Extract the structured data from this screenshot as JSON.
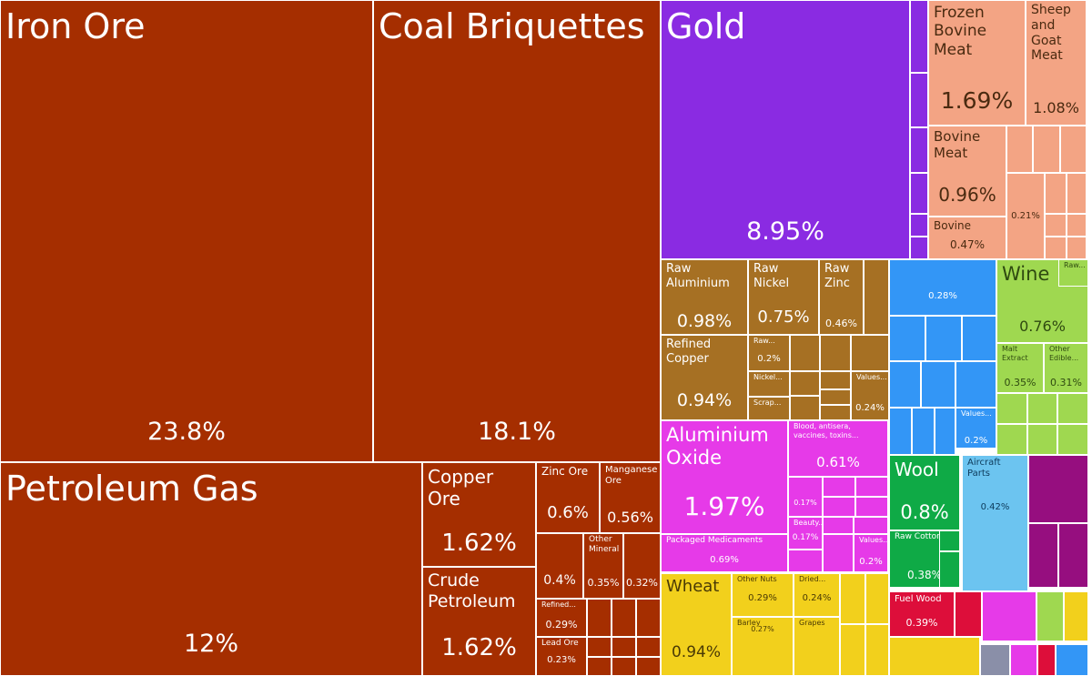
{
  "chart_data": {
    "type": "treemap",
    "unit": "%",
    "colors": {
      "minerals": "#a52e00",
      "gold": "#8a2be2",
      "meat": "#f3a484",
      "metals": "#a67023",
      "chemicals": "#e63ae8",
      "machinery": "#3396f6",
      "plant": "#9fd850",
      "food": "#f2d01c",
      "textile": "#0faa46",
      "transport": "#6cc4f0",
      "misc": "#960e7f",
      "wood": "#dd0e3a",
      "grid": "#ffffff"
    },
    "items": [
      {
        "name": "Iron Ore",
        "value": 23.8,
        "color": "minerals"
      },
      {
        "name": "Coal Briquettes",
        "value": 18.1,
        "color": "minerals"
      },
      {
        "name": "Petroleum Gas",
        "value": 12,
        "color": "minerals"
      },
      {
        "name": "Copper Ore",
        "value": 1.62,
        "color": "minerals"
      },
      {
        "name": "Crude Petroleum",
        "value": 1.62,
        "color": "minerals"
      },
      {
        "name": "Zinc Ore",
        "value": 0.6,
        "color": "minerals"
      },
      {
        "name": "Manganese Ore",
        "value": 0.56,
        "color": "minerals"
      },
      {
        "name": "",
        "value": 0.4,
        "color": "minerals"
      },
      {
        "name": "Other Mineral",
        "value": 0.35,
        "color": "minerals"
      },
      {
        "name": "",
        "value": 0.32,
        "color": "minerals"
      },
      {
        "name": "Refined...",
        "value": 0.29,
        "color": "minerals"
      },
      {
        "name": "Lead Ore",
        "value": 0.23,
        "color": "minerals"
      },
      {
        "name": "Gold",
        "value": 8.95,
        "color": "gold"
      },
      {
        "name": "Frozen Bovine Meat",
        "value": 1.69,
        "color": "meat"
      },
      {
        "name": "Sheep and Goat Meat",
        "value": 1.08,
        "color": "meat"
      },
      {
        "name": "Bovine Meat",
        "value": 0.96,
        "color": "meat"
      },
      {
        "name": "Bovine",
        "value": 0.47,
        "color": "meat"
      },
      {
        "name": "",
        "value": 0.21,
        "color": "meat"
      },
      {
        "name": "Raw Aluminium",
        "value": 0.98,
        "color": "metals"
      },
      {
        "name": "Raw Nickel",
        "value": 0.75,
        "color": "metals"
      },
      {
        "name": "Raw Zinc",
        "value": 0.46,
        "color": "metals"
      },
      {
        "name": "Refined Copper",
        "value": 0.94,
        "color": "metals"
      },
      {
        "name": "Raw...",
        "value": 0.2,
        "color": "metals"
      },
      {
        "name": "Nickel...",
        "value": null,
        "color": "metals"
      },
      {
        "name": "Scrap...",
        "value": null,
        "color": "metals"
      },
      {
        "name": "Values...",
        "value": 0.24,
        "color": "metals"
      },
      {
        "name": "",
        "value": 0.28,
        "color": "machinery"
      },
      {
        "name": "Values...",
        "value": 0.2,
        "color": "machinery"
      },
      {
        "name": "Wine",
        "value": 0.76,
        "color": "plant"
      },
      {
        "name": "Raw...",
        "value": null,
        "color": "plant"
      },
      {
        "name": "Malt Extract",
        "value": 0.35,
        "color": "plant"
      },
      {
        "name": "Other Edible...",
        "value": 0.31,
        "color": "plant"
      },
      {
        "name": "Aluminium Oxide",
        "value": 1.97,
        "color": "chemicals"
      },
      {
        "name": "Blood, antisera, vaccines, toxins...",
        "value": 0.61,
        "color": "chemicals"
      },
      {
        "name": "",
        "value": 0.17,
        "color": "chemicals"
      },
      {
        "name": "Beauty...",
        "value": 0.17,
        "color": "chemicals"
      },
      {
        "name": "Packaged Medicaments",
        "value": 0.69,
        "color": "chemicals"
      },
      {
        "name": "Values...",
        "value": 0.2,
        "color": "chemicals"
      },
      {
        "name": "Wool",
        "value": 0.8,
        "color": "textile"
      },
      {
        "name": "Raw Cotton",
        "value": 0.38,
        "color": "textile"
      },
      {
        "name": "Aircraft Parts",
        "value": 0.42,
        "color": "transport"
      },
      {
        "name": "Wheat",
        "value": 0.94,
        "color": "food"
      },
      {
        "name": "Other Nuts",
        "value": 0.29,
        "color": "food"
      },
      {
        "name": "Dried...",
        "value": 0.24,
        "color": "food"
      },
      {
        "name": "Barley",
        "value": 0.27,
        "color": "food"
      },
      {
        "name": "Grapes",
        "value": null,
        "color": "food"
      },
      {
        "name": "Fuel Wood",
        "value": 0.39,
        "color": "wood"
      }
    ]
  }
}
